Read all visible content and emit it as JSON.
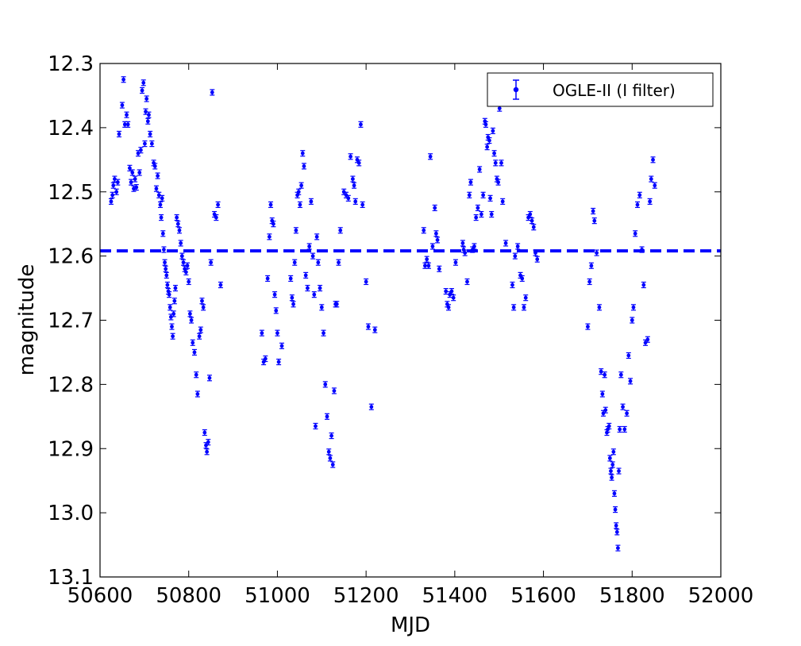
{
  "chart_data": {
    "type": "scatter",
    "xlabel": "MJD",
    "ylabel": "magnitude",
    "xlim": [
      50600,
      52000
    ],
    "ylim": [
      13.1,
      12.3
    ],
    "y_inverted": true,
    "xticks": [
      "50600",
      "50800",
      "51000",
      "51200",
      "51400",
      "51600",
      "51800",
      "52000"
    ],
    "yticks": [
      "12.3",
      "12.4",
      "12.5",
      "12.6",
      "12.7",
      "12.8",
      "12.9",
      "13.0",
      "13.1"
    ],
    "legend_position": "top-right",
    "grid": false,
    "marker_color": "#0000ff",
    "reference_line": {
      "y": 12.592,
      "style": "dashed",
      "color": "#0000ff"
    },
    "series": [
      {
        "name": "OGLE-II (I filter)",
        "points": [
          [
            50625,
            12.515
          ],
          [
            50628,
            12.505
          ],
          [
            50630,
            12.49
          ],
          [
            50633,
            12.48
          ],
          [
            50637,
            12.5
          ],
          [
            50640,
            12.485
          ],
          [
            50643,
            12.41
          ],
          [
            50650,
            12.365
          ],
          [
            50653,
            12.325
          ],
          [
            50656,
            12.395
          ],
          [
            50660,
            12.38
          ],
          [
            50663,
            12.395
          ],
          [
            50667,
            12.463
          ],
          [
            50670,
            12.485
          ],
          [
            50673,
            12.47
          ],
          [
            50676,
            12.495
          ],
          [
            50679,
            12.48
          ],
          [
            50682,
            12.493
          ],
          [
            50686,
            12.44
          ],
          [
            50689,
            12.47
          ],
          [
            50692,
            12.435
          ],
          [
            50695,
            12.342
          ],
          [
            50698,
            12.33
          ],
          [
            50701,
            12.425
          ],
          [
            50703,
            12.375
          ],
          [
            50705,
            12.355
          ],
          [
            50708,
            12.39
          ],
          [
            50710,
            12.38
          ],
          [
            50713,
            12.41
          ],
          [
            50717,
            12.425
          ],
          [
            50721,
            12.455
          ],
          [
            50724,
            12.46
          ],
          [
            50727,
            12.495
          ],
          [
            50730,
            12.475
          ],
          [
            50733,
            12.505
          ],
          [
            50736,
            12.52
          ],
          [
            50738,
            12.54
          ],
          [
            50740,
            12.51
          ],
          [
            50742,
            12.565
          ],
          [
            50744,
            12.59
          ],
          [
            50746,
            12.61
          ],
          [
            50748,
            12.62
          ],
          [
            50750,
            12.63
          ],
          [
            50752,
            12.645
          ],
          [
            50754,
            12.655
          ],
          [
            50756,
            12.66
          ],
          [
            50758,
            12.68
          ],
          [
            50760,
            12.695
          ],
          [
            50762,
            12.71
          ],
          [
            50764,
            12.725
          ],
          [
            50766,
            12.69
          ],
          [
            50768,
            12.67
          ],
          [
            50770,
            12.65
          ],
          [
            50773,
            12.54
          ],
          [
            50776,
            12.55
          ],
          [
            50779,
            12.56
          ],
          [
            50782,
            12.58
          ],
          [
            50785,
            12.6
          ],
          [
            50788,
            12.61
          ],
          [
            50791,
            12.62
          ],
          [
            50794,
            12.625
          ],
          [
            50797,
            12.615
          ],
          [
            50800,
            12.64
          ],
          [
            50803,
            12.69
          ],
          [
            50806,
            12.7
          ],
          [
            50809,
            12.735
          ],
          [
            50813,
            12.75
          ],
          [
            50817,
            12.785
          ],
          [
            50820,
            12.815
          ],
          [
            50824,
            12.725
          ],
          [
            50827,
            12.715
          ],
          [
            50830,
            12.67
          ],
          [
            50833,
            12.68
          ],
          [
            50836,
            12.875
          ],
          [
            50839,
            12.895
          ],
          [
            50841,
            12.905
          ],
          [
            50844,
            12.89
          ],
          [
            50847,
            12.79
          ],
          [
            50850,
            12.61
          ],
          [
            50853,
            12.345
          ],
          [
            50858,
            12.535
          ],
          [
            50862,
            12.54
          ],
          [
            50866,
            12.52
          ],
          [
            50872,
            12.645
          ],
          [
            50965,
            12.72
          ],
          [
            50969,
            12.765
          ],
          [
            50973,
            12.76
          ],
          [
            50978,
            12.635
          ],
          [
            50982,
            12.57
          ],
          [
            50985,
            12.52
          ],
          [
            50988,
            12.545
          ],
          [
            50991,
            12.55
          ],
          [
            50994,
            12.66
          ],
          [
            50997,
            12.685
          ],
          [
            51000,
            12.72
          ],
          [
            51003,
            12.765
          ],
          [
            51010,
            12.74
          ],
          [
            51030,
            12.635
          ],
          [
            51033,
            12.665
          ],
          [
            51036,
            12.675
          ],
          [
            51039,
            12.61
          ],
          [
            51042,
            12.56
          ],
          [
            51045,
            12.505
          ],
          [
            51048,
            12.5
          ],
          [
            51051,
            12.52
          ],
          [
            51054,
            12.49
          ],
          [
            51057,
            12.44
          ],
          [
            51060,
            12.46
          ],
          [
            51064,
            12.63
          ],
          [
            51068,
            12.65
          ],
          [
            51072,
            12.585
          ],
          [
            51076,
            12.515
          ],
          [
            51080,
            12.6
          ],
          [
            51083,
            12.66
          ],
          [
            51086,
            12.865
          ],
          [
            51089,
            12.57
          ],
          [
            51092,
            12.61
          ],
          [
            51096,
            12.65
          ],
          [
            51100,
            12.68
          ],
          [
            51104,
            12.72
          ],
          [
            51108,
            12.8
          ],
          [
            51112,
            12.85
          ],
          [
            51116,
            12.905
          ],
          [
            51119,
            12.915
          ],
          [
            51122,
            12.88
          ],
          [
            51125,
            12.925
          ],
          [
            51128,
            12.81
          ],
          [
            51131,
            12.675
          ],
          [
            51134,
            12.675
          ],
          [
            51138,
            12.61
          ],
          [
            51142,
            12.56
          ],
          [
            51150,
            12.5
          ],
          [
            51155,
            12.505
          ],
          [
            51160,
            12.51
          ],
          [
            51165,
            12.445
          ],
          [
            51170,
            12.48
          ],
          [
            51173,
            12.49
          ],
          [
            51176,
            12.515
          ],
          [
            51180,
            12.45
          ],
          [
            51184,
            12.455
          ],
          [
            51188,
            12.395
          ],
          [
            51192,
            12.52
          ],
          [
            51200,
            12.64
          ],
          [
            51205,
            12.71
          ],
          [
            51212,
            12.835
          ],
          [
            51220,
            12.715
          ],
          [
            51330,
            12.56
          ],
          [
            51333,
            12.615
          ],
          [
            51337,
            12.605
          ],
          [
            51341,
            12.615
          ],
          [
            51345,
            12.445
          ],
          [
            51350,
            12.585
          ],
          [
            51355,
            12.525
          ],
          [
            51358,
            12.565
          ],
          [
            51361,
            12.575
          ],
          [
            51365,
            12.62
          ],
          [
            51380,
            12.655
          ],
          [
            51383,
            12.675
          ],
          [
            51386,
            12.68
          ],
          [
            51389,
            12.66
          ],
          [
            51393,
            12.655
          ],
          [
            51397,
            12.665
          ],
          [
            51402,
            12.61
          ],
          [
            51418,
            12.58
          ],
          [
            51420,
            12.59
          ],
          [
            51423,
            12.595
          ],
          [
            51428,
            12.64
          ],
          [
            51433,
            12.505
          ],
          [
            51436,
            12.485
          ],
          [
            51440,
            12.59
          ],
          [
            51444,
            12.585
          ],
          [
            51448,
            12.54
          ],
          [
            51452,
            12.525
          ],
          [
            51456,
            12.465
          ],
          [
            51460,
            12.535
          ],
          [
            51464,
            12.505
          ],
          [
            51468,
            12.39
          ],
          [
            51470,
            12.395
          ],
          [
            51473,
            12.43
          ],
          [
            51475,
            12.415
          ],
          [
            51478,
            12.42
          ],
          [
            51480,
            12.51
          ],
          [
            51483,
            12.535
          ],
          [
            51486,
            12.405
          ],
          [
            51489,
            12.44
          ],
          [
            51492,
            12.455
          ],
          [
            51495,
            12.48
          ],
          [
            51498,
            12.485
          ],
          [
            51501,
            12.37
          ],
          [
            51505,
            12.455
          ],
          [
            51508,
            12.515
          ],
          [
            51515,
            12.58
          ],
          [
            51530,
            12.645
          ],
          [
            51533,
            12.68
          ],
          [
            51536,
            12.6
          ],
          [
            51542,
            12.585
          ],
          [
            51548,
            12.63
          ],
          [
            51552,
            12.635
          ],
          [
            51556,
            12.68
          ],
          [
            51560,
            12.665
          ],
          [
            51566,
            12.54
          ],
          [
            51570,
            12.535
          ],
          [
            51574,
            12.545
          ],
          [
            51578,
            12.555
          ],
          [
            51582,
            12.595
          ],
          [
            51586,
            12.605
          ],
          [
            51700,
            12.71
          ],
          [
            51704,
            12.64
          ],
          [
            51708,
            12.615
          ],
          [
            51712,
            12.53
          ],
          [
            51715,
            12.545
          ],
          [
            51720,
            12.595
          ],
          [
            51726,
            12.68
          ],
          [
            51730,
            12.78
          ],
          [
            51733,
            12.815
          ],
          [
            51735,
            12.845
          ],
          [
            51738,
            12.785
          ],
          [
            51740,
            12.84
          ],
          [
            51743,
            12.875
          ],
          [
            51745,
            12.87
          ],
          [
            51748,
            12.865
          ],
          [
            51750,
            12.915
          ],
          [
            51752,
            12.935
          ],
          [
            51754,
            12.945
          ],
          [
            51756,
            12.925
          ],
          [
            51758,
            12.905
          ],
          [
            51760,
            12.97
          ],
          [
            51762,
            12.995
          ],
          [
            51764,
            13.02
          ],
          [
            51766,
            13.03
          ],
          [
            51768,
            13.055
          ],
          [
            51770,
            12.935
          ],
          [
            51772,
            12.87
          ],
          [
            51775,
            12.785
          ],
          [
            51779,
            12.835
          ],
          [
            51783,
            12.87
          ],
          [
            51788,
            12.845
          ],
          [
            51792,
            12.755
          ],
          [
            51796,
            12.795
          ],
          [
            51800,
            12.7
          ],
          [
            51803,
            12.68
          ],
          [
            51807,
            12.565
          ],
          [
            51812,
            12.52
          ],
          [
            51817,
            12.505
          ],
          [
            51822,
            12.59
          ],
          [
            51826,
            12.645
          ],
          [
            51830,
            12.735
          ],
          [
            51835,
            12.73
          ],
          [
            51840,
            12.515
          ],
          [
            51843,
            12.48
          ],
          [
            51847,
            12.45
          ],
          [
            51851,
            12.49
          ]
        ]
      }
    ]
  }
}
